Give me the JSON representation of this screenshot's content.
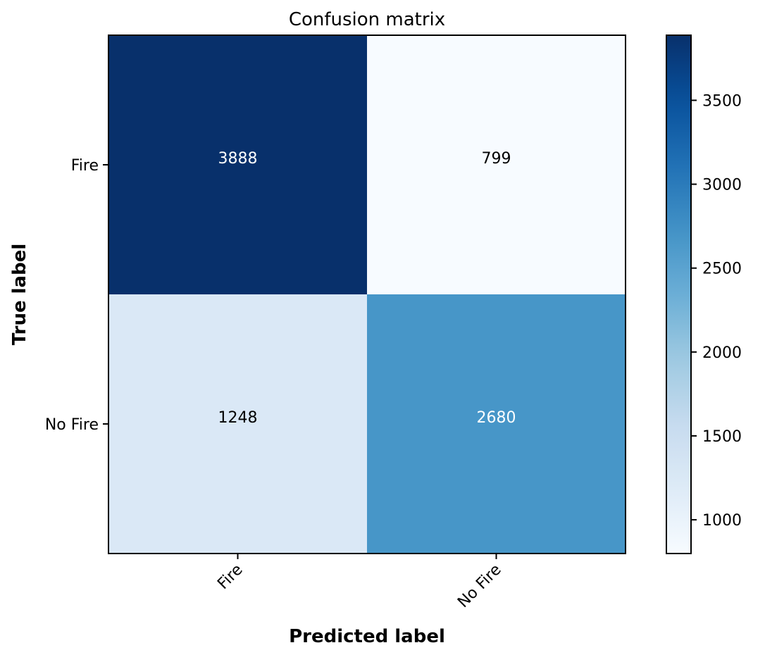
{
  "chart_data": {
    "type": "heatmap",
    "title": "Confusion matrix",
    "xlabel": "Predicted label",
    "ylabel": "True label",
    "x_categories": [
      "Fire",
      "No Fire"
    ],
    "y_categories": [
      "Fire",
      "No Fire"
    ],
    "values": [
      [
        3888,
        799
      ],
      [
        1248,
        2680
      ]
    ],
    "colormap": "Blues",
    "colorbar": {
      "min": 799,
      "max": 3888,
      "ticks": [
        1000,
        1500,
        2000,
        2500,
        3000,
        3500
      ]
    },
    "annotation_colors": {
      "dark_text": "#000000",
      "light_text": "#ffffff"
    }
  }
}
